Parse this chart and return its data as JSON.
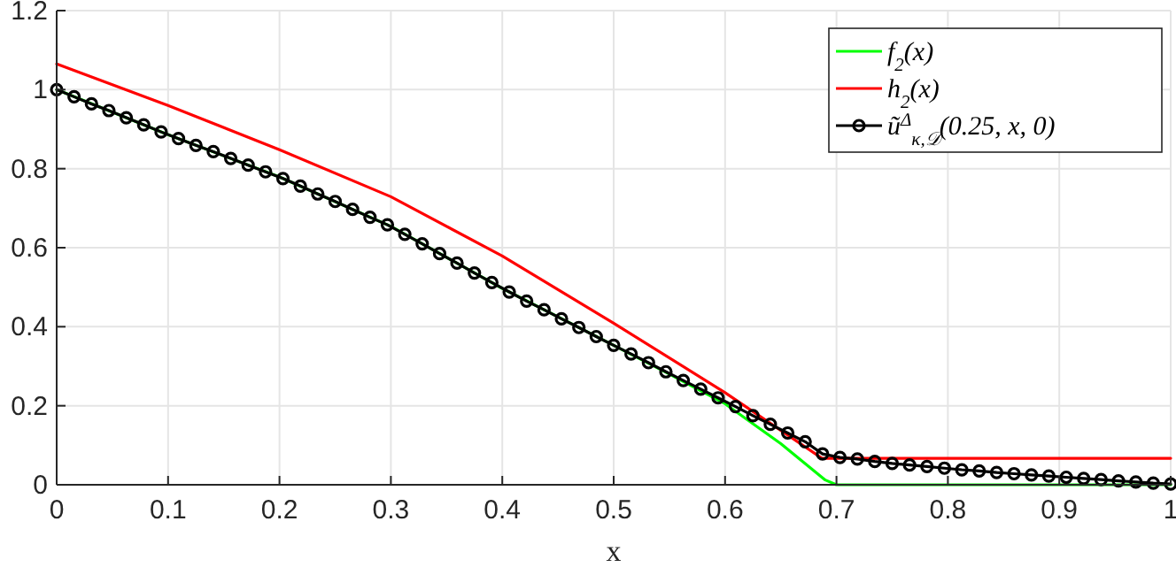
{
  "chart_data": {
    "type": "line",
    "xlabel": "x",
    "xlim": [
      0,
      1
    ],
    "ylim": [
      0,
      1.2
    ],
    "xticks": [
      0,
      0.1,
      0.2,
      0.3,
      0.4,
      0.5,
      0.6,
      0.7,
      0.8,
      0.9,
      1
    ],
    "yticks": [
      0,
      0.2,
      0.4,
      0.6,
      0.8,
      1,
      1.2
    ],
    "grid": true,
    "legend": "top right",
    "line_style": "solid",
    "series": [
      {
        "name": "f$_{2}$(x)",
        "color": "#00ff00",
        "marker": "none",
        "x": [
          0,
          0.1,
          0.2,
          0.3,
          0.4,
          0.5,
          0.55,
          0.6,
          0.65,
          0.69,
          0.7,
          1
        ],
        "values": [
          1,
          0.886,
          0.779,
          0.654,
          0.497,
          0.353,
          0.28,
          0.205,
          0.104,
          0.012,
          0,
          0
        ]
      },
      {
        "name": "h$_{2}$(x)",
        "color": "#ff0000",
        "marker": "none",
        "x": [
          0,
          0.1,
          0.2,
          0.3,
          0.4,
          0.5,
          0.6,
          0.687,
          1
        ],
        "values": [
          1.065,
          0.96,
          0.848,
          0.729,
          0.579,
          0.409,
          0.233,
          0.067,
          0.067
        ]
      },
      {
        "name": "ũ$^{Δ}$$_{κ,𝒟}$(0.25, x, 0)",
        "color": "#000000",
        "marker": "circle",
        "x": [
          0,
          0.015625,
          0.03125,
          0.046875,
          0.0625,
          0.078125,
          0.09375,
          0.109375,
          0.125,
          0.140625,
          0.15625,
          0.171875,
          0.1875,
          0.203125,
          0.21875,
          0.234375,
          0.25,
          0.265625,
          0.28125,
          0.296875,
          0.3125,
          0.328125,
          0.34375,
          0.359375,
          0.375,
          0.390625,
          0.40625,
          0.421875,
          0.4375,
          0.453125,
          0.46875,
          0.484375,
          0.5,
          0.515625,
          0.53125,
          0.546875,
          0.5625,
          0.578125,
          0.59375,
          0.609375,
          0.625,
          0.640625,
          0.65625,
          0.671875,
          0.6875,
          0.703125,
          0.71875,
          0.734375,
          0.75,
          0.765625,
          0.78125,
          0.796875,
          0.8125,
          0.828125,
          0.84375,
          0.859375,
          0.875,
          0.890625,
          0.90625,
          0.921875,
          0.9375,
          0.953125,
          0.96875,
          0.984375,
          1
        ],
        "values": [
          1,
          0.982,
          0.964,
          0.947,
          0.929,
          0.911,
          0.893,
          0.876,
          0.859,
          0.843,
          0.826,
          0.809,
          0.792,
          0.775,
          0.756,
          0.736,
          0.717,
          0.697,
          0.677,
          0.658,
          0.634,
          0.61,
          0.585,
          0.561,
          0.536,
          0.512,
          0.488,
          0.465,
          0.443,
          0.42,
          0.398,
          0.375,
          0.353,
          0.331,
          0.309,
          0.286,
          0.264,
          0.242,
          0.22,
          0.198,
          0.175,
          0.153,
          0.131,
          0.109,
          0.078,
          0.069,
          0.065,
          0.059,
          0.054,
          0.05,
          0.046,
          0.042,
          0.038,
          0.035,
          0.031,
          0.028,
          0.025,
          0.022,
          0.019,
          0.016,
          0.013,
          0.01,
          0.007,
          0.004,
          0.002
        ]
      }
    ]
  }
}
